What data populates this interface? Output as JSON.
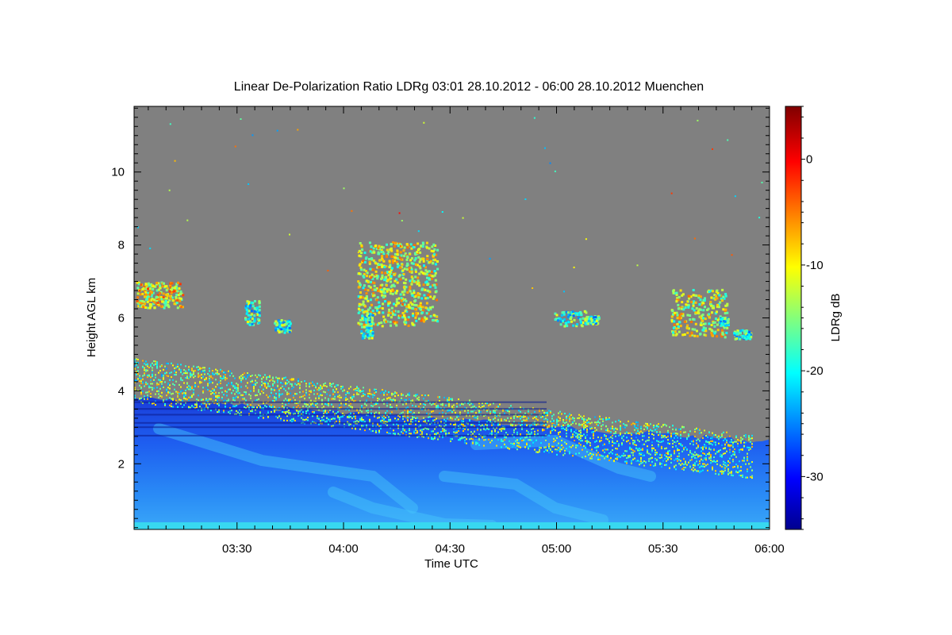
{
  "chart_data": {
    "type": "heatmap",
    "title": "Linear De-Polarization Ratio LDRg   03:01 28.10.2012 - 06:00 28.10.2012 Muenchen",
    "xlabel": "Time UTC",
    "ylabel": "Height AGL km",
    "xlim": [
      "03:01",
      "06:00"
    ],
    "ylim": [
      0.2,
      11.8
    ],
    "x_ticks": [
      "03:30",
      "04:00",
      "04:30",
      "05:00",
      "05:30",
      "06:00"
    ],
    "y_ticks": [
      "2",
      "4",
      "6",
      "8",
      "10"
    ],
    "colorbar": {
      "label": "LDRg dB",
      "range": [
        -35,
        5
      ],
      "ticks": [
        "0",
        "-10",
        "-20",
        "-30"
      ],
      "colormap": "jet"
    },
    "no_signal_color": "#808080",
    "features": [
      {
        "name": "boundary_layer",
        "time_start": "03:01",
        "time_end": "06:00",
        "height_top_start": 3.8,
        "height_top_end": 2.6,
        "ldr_db": -28
      },
      {
        "name": "cloud_top_edge",
        "time_start": "03:01",
        "time_end": "05:55",
        "height_start": 4.9,
        "height_end": 2.8,
        "ldr_db": -15
      },
      {
        "name": "mid_level_cloud",
        "time": "04:15",
        "height_range": [
          5.8,
          8.1
        ],
        "ldr_db": -12
      },
      {
        "name": "cirrus_early",
        "time": "03:08",
        "height_range": [
          6.3,
          7.0
        ],
        "ldr_db": -10
      },
      {
        "name": "cirrus_late",
        "time": "05:40",
        "height_range": [
          5.5,
          6.8
        ],
        "ldr_db": -12
      }
    ]
  }
}
